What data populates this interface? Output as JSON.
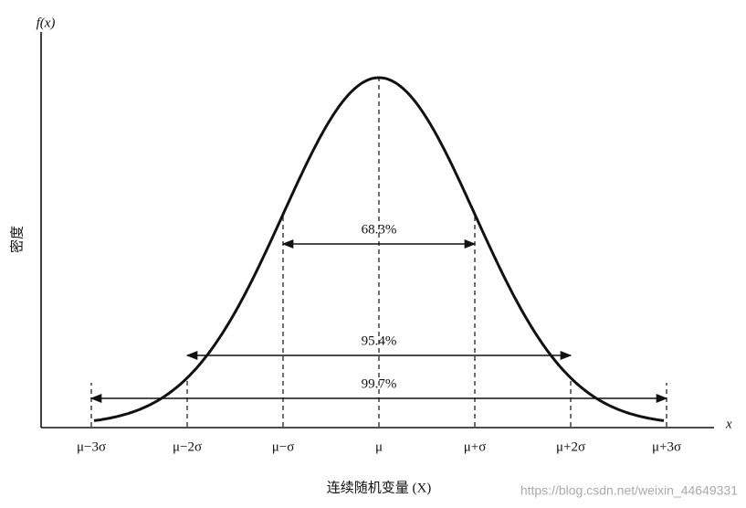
{
  "diagram": {
    "y_axis_label": "f(x)",
    "y_axis_title": "密度",
    "x_axis_label": "x",
    "x_axis_title": "连续随机变量 (X)",
    "ticks": [
      "μ−3σ",
      "μ−2σ",
      "μ−σ",
      "μ",
      "μ+σ",
      "μ+2σ",
      "μ+3σ"
    ],
    "intervals": [
      "68.3%",
      "95.4%",
      "99.7%"
    ],
    "watermark": "https://blog.csdn.net/weixin_44649331"
  }
}
